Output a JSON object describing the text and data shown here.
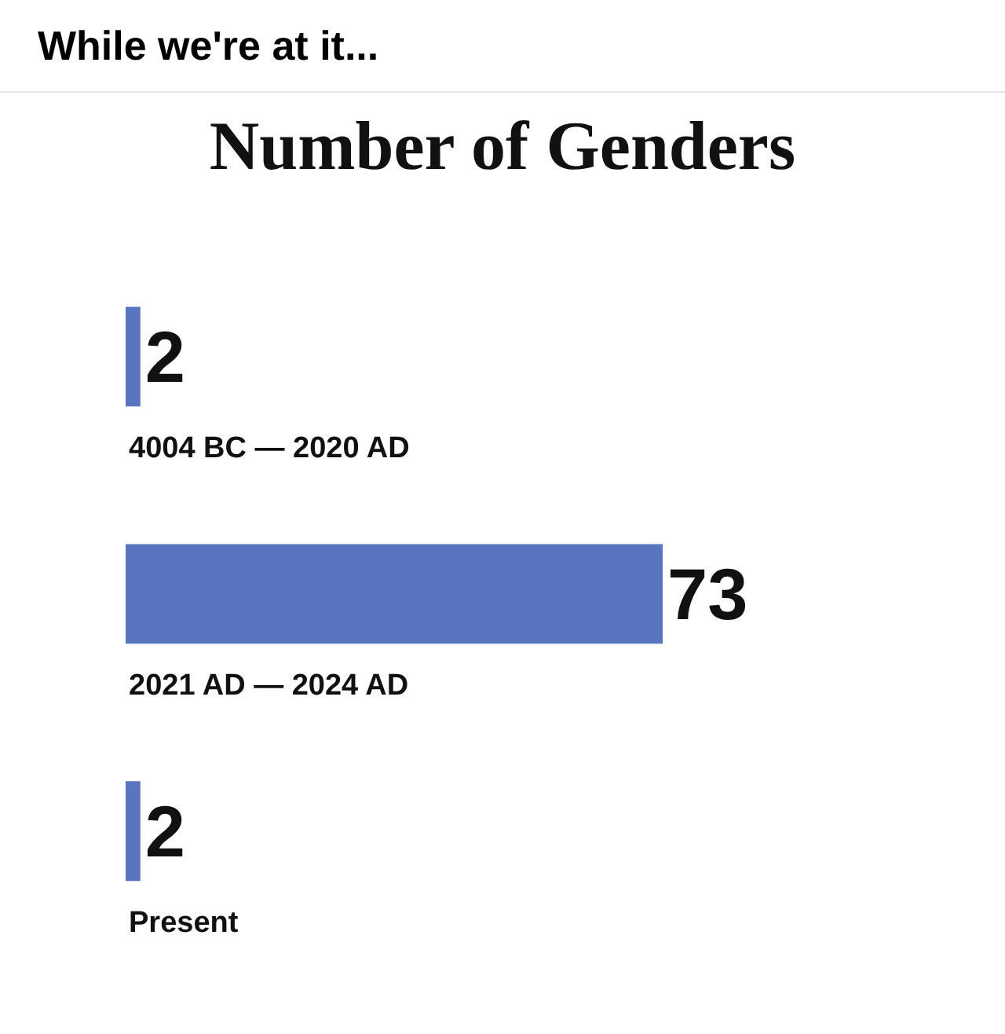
{
  "chart_data": {
    "type": "bar",
    "orientation": "horizontal",
    "title": "While we're at it...",
    "subtitle": "Number of Genders",
    "categories": [
      "4004 BC — 2020 AD",
      "2021 AD — 2024 AD",
      "Present"
    ],
    "values": [
      2,
      73,
      2
    ],
    "color": "#5a75bf",
    "data_labels": true
  }
}
